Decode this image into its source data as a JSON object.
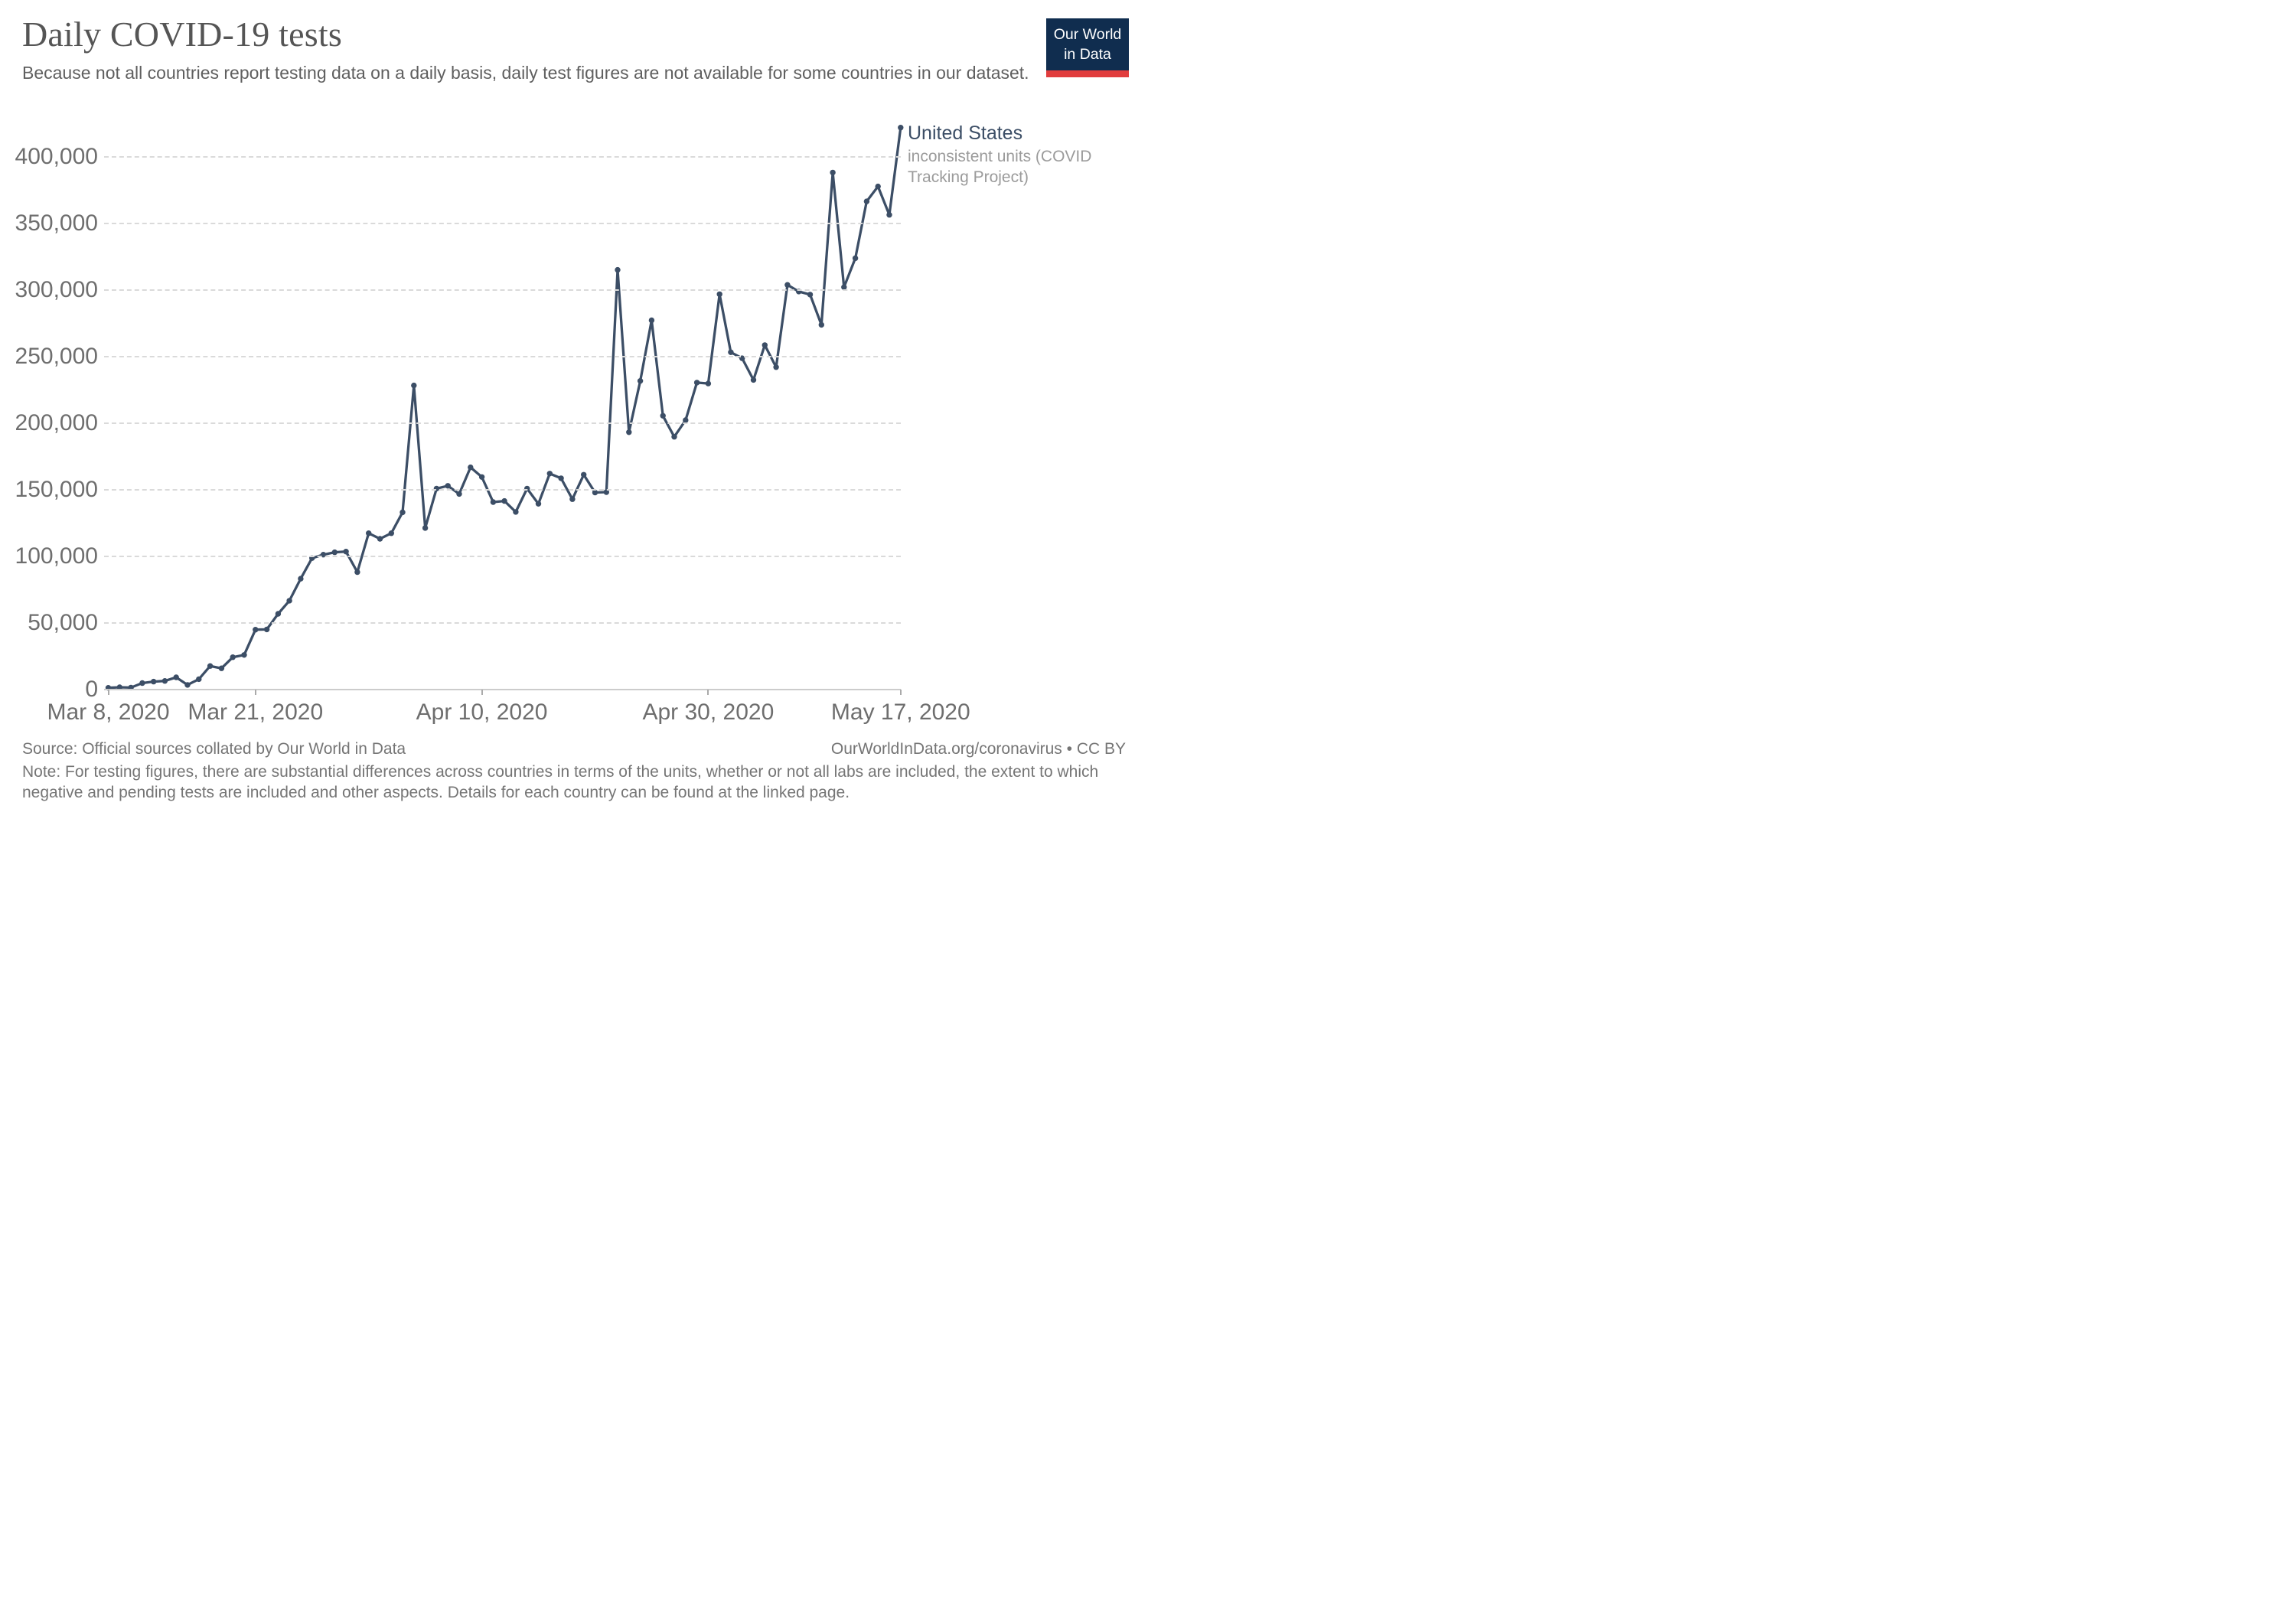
{
  "header": {
    "title": "Daily COVID-19 tests",
    "subtitle": "Because not all countries report testing data on a daily basis, daily test figures are not available for some countries in our dataset.",
    "logo": {
      "line1": "Our World",
      "line2": "in Data"
    }
  },
  "legend": {
    "label": "United States",
    "sublabel": "inconsistent units (COVID Tracking Project)"
  },
  "footer": {
    "source": "Source: Official sources collated by Our World in Data",
    "link": "OurWorldInData.org/coronavirus • CC BY",
    "note": "Note: For testing figures, there are substantial differences across countries in terms of the units, whether or not all labs are included, the extent to which negative and pending tests are included and other aspects. Details for each country can be found at the linked page."
  },
  "chart_data": {
    "type": "line",
    "title": "Daily COVID-19 tests",
    "xlabel": "",
    "ylabel": "",
    "ylim": [
      0,
      400000
    ],
    "grid": "horizontal-dashed",
    "legend_position": "right-of-last-point",
    "line_color": "#3C4E66",
    "marker": "circle",
    "yticks": [
      {
        "value": 0,
        "label": "0"
      },
      {
        "value": 50000,
        "label": "50,000"
      },
      {
        "value": 100000,
        "label": "100,000"
      },
      {
        "value": 150000,
        "label": "150,000"
      },
      {
        "value": 200000,
        "label": "200,000"
      },
      {
        "value": 250000,
        "label": "250,000"
      },
      {
        "value": 300000,
        "label": "300,000"
      },
      {
        "value": 350000,
        "label": "350,000"
      },
      {
        "value": 400000,
        "label": "400,000"
      }
    ],
    "xticks": [
      {
        "label": "Mar 8, 2020",
        "day_index": 0
      },
      {
        "label": "Mar 21, 2020",
        "day_index": 13
      },
      {
        "label": "Apr 10, 2020",
        "day_index": 33
      },
      {
        "label": "Apr 30, 2020",
        "day_index": 53
      },
      {
        "label": "May 17, 2020",
        "day_index": 70
      }
    ],
    "series": [
      {
        "name": "United States",
        "unit_note": "inconsistent units (COVID Tracking Project)",
        "color": "#3C4E66",
        "dates": [
          "2020-03-08",
          "2020-03-09",
          "2020-03-10",
          "2020-03-11",
          "2020-03-12",
          "2020-03-13",
          "2020-03-14",
          "2020-03-15",
          "2020-03-16",
          "2020-03-17",
          "2020-03-18",
          "2020-03-19",
          "2020-03-20",
          "2020-03-21",
          "2020-03-22",
          "2020-03-23",
          "2020-03-24",
          "2020-03-25",
          "2020-03-26",
          "2020-03-27",
          "2020-03-28",
          "2020-03-29",
          "2020-03-30",
          "2020-03-31",
          "2020-04-01",
          "2020-04-02",
          "2020-04-03",
          "2020-04-04",
          "2020-04-05",
          "2020-04-06",
          "2020-04-07",
          "2020-04-08",
          "2020-04-09",
          "2020-04-10",
          "2020-04-11",
          "2020-04-12",
          "2020-04-13",
          "2020-04-14",
          "2020-04-15",
          "2020-04-16",
          "2020-04-17",
          "2020-04-18",
          "2020-04-19",
          "2020-04-20",
          "2020-04-21",
          "2020-04-22",
          "2020-04-23",
          "2020-04-24",
          "2020-04-25",
          "2020-04-26",
          "2020-04-27",
          "2020-04-28",
          "2020-04-29",
          "2020-04-30",
          "2020-05-01",
          "2020-05-02",
          "2020-05-03",
          "2020-05-04",
          "2020-05-05",
          "2020-05-06",
          "2020-05-07",
          "2020-05-08",
          "2020-05-09",
          "2020-05-10",
          "2020-05-11",
          "2020-05-12",
          "2020-05-13",
          "2020-05-14",
          "2020-05-15",
          "2020-05-16",
          "2020-05-17"
        ],
        "values": [
          1300,
          1700,
          1500,
          4900,
          6000,
          6500,
          9200,
          3500,
          7800,
          17700,
          16000,
          24300,
          26000,
          45000,
          45200,
          56900,
          66700,
          83300,
          98700,
          101300,
          103100,
          103600,
          88200,
          117400,
          113200,
          117400,
          133100,
          228400,
          121300,
          150900,
          153000,
          146900,
          166900,
          159600,
          140800,
          141600,
          133400,
          150900,
          139500,
          162200,
          158700,
          143000,
          161300,
          148000,
          148300,
          315200,
          193200,
          231800,
          277300,
          205600,
          189800,
          202300,
          230500,
          229800,
          296900,
          253300,
          248800,
          232500,
          258700,
          242100,
          303900,
          298900,
          296600,
          273900,
          388300,
          302200,
          323900,
          366600,
          377800,
          356500,
          422000
        ]
      }
    ],
    "colors": {
      "line": "#3C4E66",
      "title": "#555555",
      "subtitle": "#5f5f5f",
      "axis_labels": "#6e6e6e",
      "gridline": "#dadada",
      "axis_line": "#cccccc",
      "footer_text": "#757575",
      "legend_sub": "#9b9b9b",
      "logo_bg": "#102D4F",
      "logo_stripe": "#E13D3D"
    }
  }
}
